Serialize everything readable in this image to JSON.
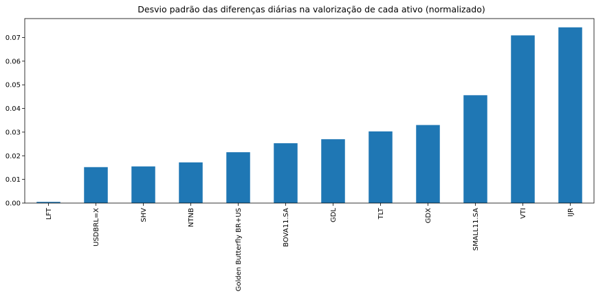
{
  "chart_data": {
    "type": "bar",
    "title": "Desvio padrão das diferenças diárias na valorização de cada ativo (normalizado)",
    "categories": [
      "LFT",
      "USDBRL=X",
      "SHV",
      "NTNB",
      "Golden Butterfly BR+US",
      "BOVA11.SA",
      "GDL",
      "TLT",
      "GDX",
      "SMALL11.SA",
      "VTI",
      "IJR"
    ],
    "values": [
      0.0005,
      0.0152,
      0.0155,
      0.0172,
      0.0215,
      0.0253,
      0.027,
      0.0303,
      0.033,
      0.0456,
      0.0709,
      0.0743
    ],
    "xlabel": "",
    "ylabel": "",
    "ylim": [
      0,
      0.078
    ],
    "yticks": [
      0.0,
      0.01,
      0.02,
      0.03,
      0.04,
      0.05,
      0.06,
      0.07
    ],
    "ytick_labels": [
      "0.00",
      "0.01",
      "0.02",
      "0.03",
      "0.04",
      "0.05",
      "0.06",
      "0.07"
    ],
    "bar_color": "#1f77b4",
    "grid": false,
    "legend": "none"
  }
}
